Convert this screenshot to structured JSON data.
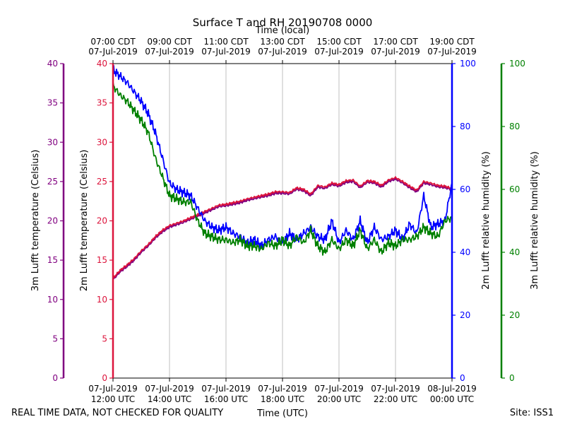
{
  "chart_data": {
    "type": "line",
    "title": "Surface T and RH 20190708 0000",
    "top_axis_label": "Time (local)",
    "xlabel": "Time (UTC)",
    "left_axes": [
      {
        "label": "3m Lufft temperature (Celsius)",
        "color": "#800080",
        "ylim": [
          0,
          40
        ],
        "ticks": [
          "0",
          "5",
          "10",
          "15",
          "20",
          "25",
          "30",
          "35",
          "40"
        ]
      },
      {
        "label": "2m Lufft temperature (Celsius)",
        "color": "#dc143c",
        "ylim": [
          0,
          40
        ],
        "ticks": [
          "0",
          "5",
          "10",
          "15",
          "20",
          "25",
          "30",
          "35",
          "40"
        ]
      }
    ],
    "right_axes": [
      {
        "label": "2m Lufft relative humidity (%)",
        "color": "#0000ff",
        "ylim": [
          0,
          100
        ],
        "ticks": [
          "0",
          "20",
          "40",
          "60",
          "80",
          "100"
        ]
      },
      {
        "label": "3m Lufft relative humidity (%)",
        "color": "#008000",
        "ylim": [
          0,
          100
        ],
        "ticks": [
          "0",
          "20",
          "40",
          "60",
          "80",
          "100"
        ]
      }
    ],
    "xlim_hours": [
      0,
      12
    ],
    "grid_hours": [
      2,
      4,
      6,
      8,
      10
    ],
    "bottom_ticks": [
      {
        "h": 0,
        "l1": "07-Jul-2019",
        "l2": "12:00 UTC"
      },
      {
        "h": 2,
        "l1": "07-Jul-2019",
        "l2": "14:00 UTC"
      },
      {
        "h": 4,
        "l1": "07-Jul-2019",
        "l2": "16:00 UTC"
      },
      {
        "h": 6,
        "l1": "07-Jul-2019",
        "l2": "18:00 UTC"
      },
      {
        "h": 8,
        "l1": "07-Jul-2019",
        "l2": "20:00 UTC"
      },
      {
        "h": 10,
        "l1": "07-Jul-2019",
        "l2": "22:00 UTC"
      },
      {
        "h": 12,
        "l1": "08-Jul-2019",
        "l2": "00:00 UTC"
      }
    ],
    "top_ticks": [
      {
        "h": 0,
        "l1": "07:00 CDT",
        "l2": "07-Jul-2019"
      },
      {
        "h": 2,
        "l1": "09:00 CDT",
        "l2": "07-Jul-2019"
      },
      {
        "h": 4,
        "l1": "11:00 CDT",
        "l2": "07-Jul-2019"
      },
      {
        "h": 6,
        "l1": "13:00 CDT",
        "l2": "07-Jul-2019"
      },
      {
        "h": 8,
        "l1": "15:00 CDT",
        "l2": "07-Jul-2019"
      },
      {
        "h": 10,
        "l1": "17:00 CDT",
        "l2": "07-Jul-2019"
      },
      {
        "h": 12,
        "l1": "19:00 CDT",
        "l2": "07-Jul-2019"
      }
    ],
    "series": [
      {
        "name": "3m Lufft temperature",
        "axis": "left_temp",
        "color": "#800080",
        "x": [
          0,
          0.25,
          0.5,
          0.75,
          1.0,
          1.25,
          1.5,
          1.75,
          2.0,
          2.25,
          2.5,
          2.75,
          3.0,
          3.25,
          3.5,
          3.75,
          4.0,
          4.25,
          4.5,
          4.75,
          5.0,
          5.25,
          5.5,
          5.75,
          6.0,
          6.25,
          6.5,
          6.75,
          7.0,
          7.25,
          7.5,
          7.75,
          8.0,
          8.25,
          8.5,
          8.75,
          9.0,
          9.25,
          9.5,
          9.75,
          10.0,
          10.25,
          10.5,
          10.75,
          11.0,
          11.25,
          11.5,
          11.75,
          12.0
        ],
        "values": [
          12.5,
          13.5,
          14.2,
          15.0,
          16.0,
          16.8,
          17.8,
          18.6,
          19.2,
          19.5,
          19.8,
          20.2,
          20.6,
          21.0,
          21.4,
          21.8,
          21.9,
          22.1,
          22.3,
          22.6,
          22.8,
          23.0,
          23.2,
          23.5,
          23.5,
          23.4,
          24.0,
          23.8,
          23.2,
          24.3,
          24.1,
          24.6,
          24.4,
          24.9,
          25.0,
          24.2,
          24.9,
          24.8,
          24.3,
          25.0,
          25.3,
          24.8,
          24.2,
          23.7,
          24.8,
          24.6,
          24.3,
          24.2,
          24.0
        ]
      },
      {
        "name": "2m Lufft temperature",
        "axis": "left_temp",
        "color": "#dc143c",
        "x": [
          0,
          0.25,
          0.5,
          0.75,
          1.0,
          1.25,
          1.5,
          1.75,
          2.0,
          2.25,
          2.5,
          2.75,
          3.0,
          3.25,
          3.5,
          3.75,
          4.0,
          4.25,
          4.5,
          4.75,
          5.0,
          5.25,
          5.5,
          5.75,
          6.0,
          6.25,
          6.5,
          6.75,
          7.0,
          7.25,
          7.5,
          7.75,
          8.0,
          8.25,
          8.5,
          8.75,
          9.0,
          9.25,
          9.5,
          9.75,
          10.0,
          10.25,
          10.5,
          10.75,
          11.0,
          11.25,
          11.5,
          11.75,
          12.0
        ],
        "values": [
          12.7,
          13.7,
          14.4,
          15.2,
          16.2,
          17.0,
          18.0,
          18.8,
          19.4,
          19.7,
          20.0,
          20.4,
          20.8,
          21.2,
          21.6,
          22.0,
          22.1,
          22.3,
          22.5,
          22.8,
          23.0,
          23.2,
          23.4,
          23.7,
          23.7,
          23.6,
          24.2,
          24.0,
          23.4,
          24.5,
          24.3,
          24.8,
          24.6,
          25.1,
          25.2,
          24.4,
          25.1,
          25.0,
          24.5,
          25.2,
          25.5,
          25.0,
          24.4,
          23.9,
          25.0,
          24.8,
          24.5,
          24.4,
          24.1
        ]
      },
      {
        "name": "2m Lufft relative humidity",
        "axis": "right_rh",
        "color": "#0000ff",
        "x": [
          0,
          0.25,
          0.5,
          0.75,
          1.0,
          1.25,
          1.5,
          1.75,
          2.0,
          2.25,
          2.5,
          2.75,
          3.0,
          3.25,
          3.5,
          3.75,
          4.0,
          4.25,
          4.5,
          4.75,
          5.0,
          5.25,
          5.5,
          5.75,
          6.0,
          6.25,
          6.5,
          6.75,
          7.0,
          7.25,
          7.5,
          7.75,
          8.0,
          8.25,
          8.5,
          8.75,
          9.0,
          9.25,
          9.5,
          9.75,
          10.0,
          10.25,
          10.5,
          10.75,
          11.0,
          11.25,
          11.5,
          11.75,
          12.0
        ],
        "values": [
          98,
          96,
          94,
          91,
          88,
          84,
          78,
          70,
          62,
          60,
          59,
          58,
          54,
          50,
          48,
          47,
          48,
          46,
          45,
          43,
          44,
          42,
          44,
          45,
          43,
          46,
          44,
          46,
          48,
          45,
          44,
          50,
          43,
          47,
          44,
          50,
          43,
          48,
          44,
          45,
          47,
          44,
          49,
          46,
          58,
          48,
          49,
          50,
          62
        ]
      },
      {
        "name": "3m Lufft relative humidity",
        "axis": "right_rh",
        "color": "#008000",
        "x": [
          0,
          0.25,
          0.5,
          0.75,
          1.0,
          1.25,
          1.5,
          1.75,
          2.0,
          2.25,
          2.5,
          2.75,
          3.0,
          3.25,
          3.5,
          3.75,
          4.0,
          4.25,
          4.5,
          4.75,
          5.0,
          5.25,
          5.5,
          5.75,
          6.0,
          6.25,
          6.5,
          6.75,
          7.0,
          7.25,
          7.5,
          7.75,
          8.0,
          8.25,
          8.5,
          8.75,
          9.0,
          9.25,
          9.5,
          9.75,
          10.0,
          10.25,
          10.5,
          10.75,
          11.0,
          11.25,
          11.5,
          11.75,
          12.0
        ],
        "values": [
          93,
          90,
          88,
          85,
          82,
          78,
          70,
          64,
          58,
          57,
          56,
          56,
          50,
          46,
          45,
          44,
          44,
          43,
          44,
          42,
          42,
          41,
          43,
          42,
          44,
          42,
          45,
          43,
          47,
          42,
          40,
          44,
          41,
          44,
          42,
          47,
          41,
          44,
          40,
          43,
          42,
          44,
          44,
          45,
          48,
          46,
          45,
          50,
          51
        ]
      }
    ]
  },
  "footer": {
    "quality_note": "REAL TIME DATA, NOT CHECKED FOR QUALITY",
    "site": "Site: ISS1"
  }
}
